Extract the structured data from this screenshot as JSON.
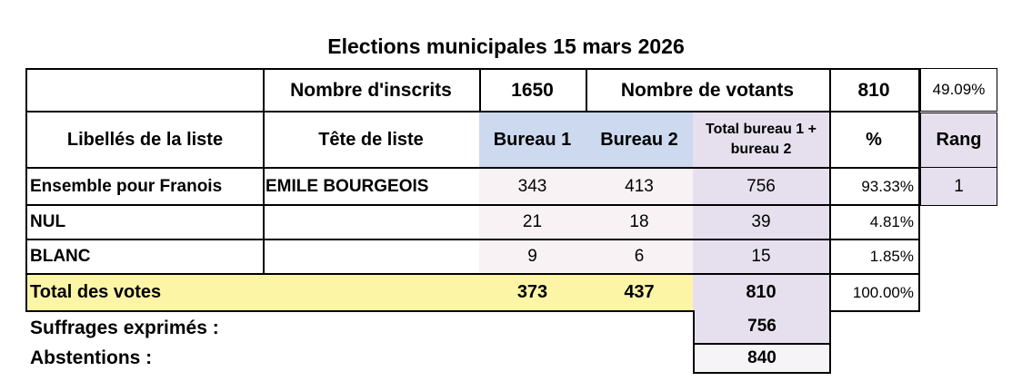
{
  "title": "Elections municipales 15 mars 2026",
  "summary": {
    "inscrits_label": "Nombre d'inscrits",
    "inscrits_value": "1650",
    "votants_label": "Nombre de votants",
    "votants_value": "810",
    "participation": "49.09%"
  },
  "headers": {
    "libelles": "Libellés de la liste",
    "tete": "Tête de liste",
    "bureau1": "Bureau 1",
    "bureau2": "Bureau 2",
    "total": "Total bureau 1 + bureau 2",
    "pct": "%",
    "rang": "Rang"
  },
  "rows": [
    {
      "libelle": "Ensemble pour Franois",
      "tete": "EMILE BOURGEOIS",
      "b1": "343",
      "b2": "413",
      "total": "756",
      "pct": "93.33%",
      "rang": "1"
    },
    {
      "libelle": "NUL",
      "tete": "",
      "b1": "21",
      "b2": "18",
      "total": "39",
      "pct": "4.81%"
    },
    {
      "libelle": "BLANC",
      "tete": "",
      "b1": "9",
      "b2": "6",
      "total": "15",
      "pct": "1.85%"
    }
  ],
  "totals": {
    "label": "Total des votes",
    "b1": "373",
    "b2": "437",
    "total": "810",
    "pct": "100.00%"
  },
  "footer": {
    "exprimes_label": "Suffrages exprimés :",
    "exprimes_value": "756",
    "abstentions_label": "Abstentions :",
    "abstentions_value": "840"
  },
  "colors": {
    "bureau_header": "#cdd9ee",
    "total_column": "#e6e0ee",
    "values": "#f8f2f4",
    "totals_row": "#fdf5a6"
  }
}
